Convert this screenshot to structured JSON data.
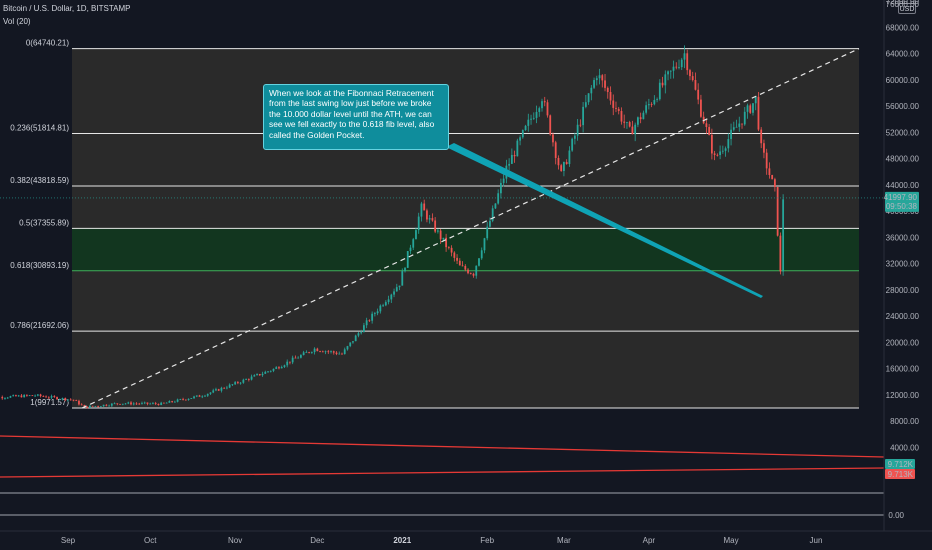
{
  "header": {
    "symbol_line": "Bitcoin / U.S. Dollar, 1D, BITSTAMP",
    "volume_line": "Vol (20)"
  },
  "currency_badge": "USD",
  "note": "When we look at the Fibonnaci Retracement from the last swing low just before we broke the 10.000 dollar level until the ATH, we can see we fell exactly to the 0.618 fib level, also called the Golden Pocket.",
  "price_axis": {
    "top_partial": "76000.00",
    "ticks": [
      "72000.00",
      "68000.00",
      "64000.00",
      "60000.00",
      "56000.00",
      "52000.00",
      "48000.00",
      "44000.00",
      "40000.00",
      "36000.00",
      "32000.00",
      "28000.00",
      "24000.00",
      "20000.00",
      "16000.00",
      "12000.00",
      "8000.00",
      "4000.00"
    ],
    "volume_zero": "0.00",
    "last_price": "41997.90",
    "countdown": "09:50:38",
    "vol_badge_1": "9.712K",
    "vol_badge_2": "9.713K"
  },
  "time_axis": {
    "ticks": [
      "Sep",
      "Oct",
      "Nov",
      "Dec",
      "2021",
      "Feb",
      "Mar",
      "Apr",
      "May",
      "Jun"
    ]
  },
  "colors": {
    "background": "#131722",
    "fib_zone": "#2a2a2a",
    "golden_pocket": "#12361f",
    "up": "#26a69a",
    "down": "#ef5350",
    "accent": "#0f8d9c"
  },
  "chart_data": {
    "type": "candlestick",
    "title": "Bitcoin / U.S. Dollar, 1D, BITSTAMP",
    "ylim": [
      0,
      76000
    ],
    "fib_levels": [
      {
        "label": "0(64740.21)",
        "ratio": 0,
        "price": 64740.21
      },
      {
        "label": "0.236(51814.81)",
        "ratio": 0.236,
        "price": 51814.81
      },
      {
        "label": "0.382(43818.59)",
        "ratio": 0.382,
        "price": 43818.59
      },
      {
        "label": "0.5(37355.89)",
        "ratio": 0.5,
        "price": 37355.89
      },
      {
        "label": "0.618(30893.19)",
        "ratio": 0.618,
        "price": 30893.19
      },
      {
        "label": "0.786(21692.06)",
        "ratio": 0.786,
        "price": 21692.06
      },
      {
        "label": "1(9971.57)",
        "ratio": 1,
        "price": 9971.57
      }
    ],
    "price_path": [
      [
        "2020-08-01",
        11500
      ],
      [
        "2020-08-20",
        11900
      ],
      [
        "2020-09-03",
        11200
      ],
      [
        "2020-09-07",
        10100
      ],
      [
        "2020-09-20",
        10700
      ],
      [
        "2020-10-05",
        10600
      ],
      [
        "2020-10-20",
        11900
      ],
      [
        "2020-11-01",
        13700
      ],
      [
        "2020-11-15",
        15900
      ],
      [
        "2020-11-30",
        19000
      ],
      [
        "2020-12-10",
        18200
      ],
      [
        "2020-12-20",
        23500
      ],
      [
        "2020-12-31",
        29000
      ],
      [
        "2021-01-08",
        40500
      ],
      [
        "2021-01-22",
        31500
      ],
      [
        "2021-01-27",
        30500
      ],
      [
        "2021-02-08",
        46500
      ],
      [
        "2021-02-21",
        57500
      ],
      [
        "2021-02-28",
        45500
      ],
      [
        "2021-03-13",
        61000
      ],
      [
        "2021-03-25",
        52000
      ],
      [
        "2021-04-14",
        64000
      ],
      [
        "2021-04-25",
        48000
      ],
      [
        "2021-05-10",
        57000
      ],
      [
        "2021-05-12",
        49500
      ],
      [
        "2021-05-17",
        43000
      ],
      [
        "2021-05-19",
        30500
      ],
      [
        "2021-05-20",
        41997.9
      ]
    ],
    "last_price": 41997.9
  }
}
